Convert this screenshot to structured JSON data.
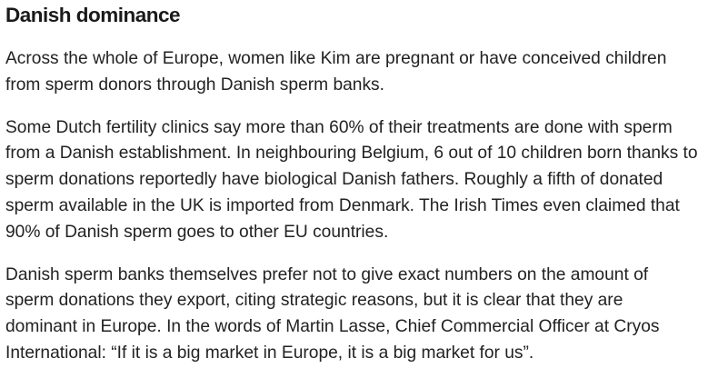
{
  "article": {
    "heading": "Danish dominance",
    "paragraphs": [
      {
        "lines": [
          "Across the whole of Europe, women like Kim are pregnant or have conceived children",
          "from sperm donors through Danish sperm banks."
        ]
      },
      {
        "lines": [
          "Some Dutch fertility clinics say more than 60% of their treatments are done with sperm",
          "from a Danish establishment. In neighbouring Belgium, 6 out of 10 children born thanks to",
          "sperm donations reportedly have biological Danish fathers. Roughly a fifth of donated",
          "sperm available in the UK is imported from Denmark. The Irish Times even claimed that",
          "90% of Danish sperm goes to other EU countries."
        ]
      },
      {
        "lines": [
          "Danish sperm banks themselves prefer not to give exact numbers on the amount of",
          "sperm donations they export, citing strategic reasons, but it is clear that they are",
          "dominant in Europe. In the words of Martin Lasse, Chief Commercial Officer at Cryos",
          "International: “If it is a big market in Europe, it is a big market for us”."
        ]
      }
    ]
  }
}
